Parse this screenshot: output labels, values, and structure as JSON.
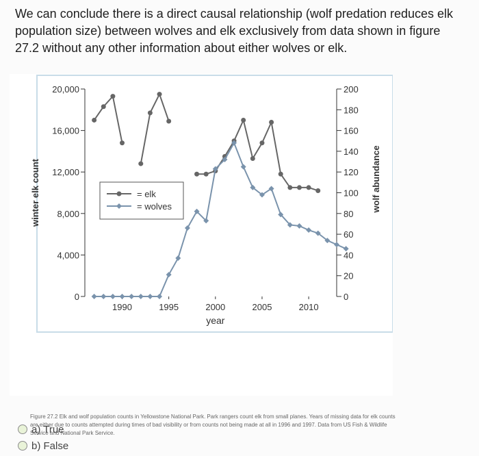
{
  "question": {
    "text": "We can conclude there is a direct causal relationship (wolf predation reduces elk population size) between wolves and elk exclusively from data shown in figure 27.2 without any other information about either wolves or elk."
  },
  "figure": {
    "caption": "Figure 27.2 Elk and wolf population counts in Yellowstone National Park. Park rangers count elk from small planes. Years of missing data for elk counts are either due to counts attempted during times of bad visibility or from counts not being made at all in 1996 and 1997. Data from US Fish & Wildlife Service and National Park Service."
  },
  "chart_data": {
    "type": "line",
    "xlabel": "year",
    "ylabel_left": "winter elk count",
    "ylabel_right": "wolf abundance",
    "x_ticks": [
      "1990",
      "1995",
      "2000",
      "2005",
      "2010"
    ],
    "y_left_ticks": [
      "0",
      "4,000",
      "8,000",
      "12,000",
      "16,000",
      "20,000"
    ],
    "y_right_ticks": [
      "0",
      "20",
      "40",
      "60",
      "80",
      "100",
      "120",
      "140",
      "160",
      "180",
      "200"
    ],
    "xlim": [
      1986,
      2013
    ],
    "ylim_left": [
      0,
      20000
    ],
    "ylim_right": [
      0,
      200
    ],
    "legend_position": "upper-left",
    "series": [
      {
        "name": "elk",
        "axis": "left",
        "color": "#666666",
        "points": [
          [
            1987,
            17000
          ],
          [
            1988,
            18300
          ],
          [
            1989,
            19300
          ],
          [
            1990,
            14800
          ],
          [
            1992,
            12800
          ],
          [
            1993,
            17700
          ],
          [
            1994,
            19500
          ],
          [
            1995,
            16900
          ],
          [
            1998,
            11800
          ],
          [
            1999,
            11800
          ],
          [
            2000,
            12100
          ],
          [
            2001,
            13500
          ],
          [
            2002,
            15000
          ],
          [
            2003,
            17000
          ],
          [
            2004,
            13300
          ],
          [
            2005,
            14800
          ],
          [
            2006,
            16800
          ],
          [
            2007,
            11800
          ],
          [
            2008,
            10500
          ],
          [
            2009,
            10500
          ],
          [
            2010,
            10500
          ],
          [
            2011,
            10200
          ]
        ]
      },
      {
        "name": "wolves",
        "axis": "right",
        "color": "#7a93ac",
        "points": [
          [
            1987,
            0
          ],
          [
            1988,
            0
          ],
          [
            1989,
            0
          ],
          [
            1990,
            0
          ],
          [
            1991,
            0
          ],
          [
            1992,
            0
          ],
          [
            1993,
            0
          ],
          [
            1994,
            0
          ],
          [
            1995,
            21
          ],
          [
            1996,
            37
          ],
          [
            1997,
            66
          ],
          [
            1998,
            82
          ],
          [
            1999,
            73
          ],
          [
            2000,
            123
          ],
          [
            2001,
            132
          ],
          [
            2002,
            148
          ],
          [
            2003,
            125
          ],
          [
            2004,
            105
          ],
          [
            2005,
            98
          ],
          [
            2006,
            104
          ],
          [
            2007,
            79
          ],
          [
            2008,
            69
          ],
          [
            2009,
            68
          ],
          [
            2010,
            64
          ],
          [
            2011,
            61
          ],
          [
            2012,
            54
          ],
          [
            2013,
            50
          ],
          [
            2014,
            46
          ]
        ]
      }
    ]
  },
  "options": [
    {
      "label": "a) True"
    },
    {
      "label": "b) False"
    }
  ]
}
